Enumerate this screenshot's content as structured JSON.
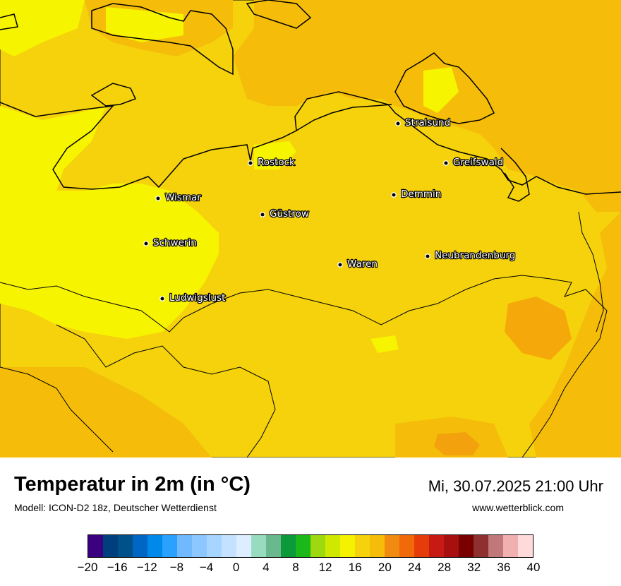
{
  "map": {
    "cities": [
      {
        "name": "Stralsund"
      },
      {
        "name": "Rostock"
      },
      {
        "name": "Greifswald"
      },
      {
        "name": "Wismar"
      },
      {
        "name": "Demmin"
      },
      {
        "name": "Güstrow"
      },
      {
        "name": "Schwerin"
      },
      {
        "name": "Neubrandenburg"
      },
      {
        "name": "Waren"
      },
      {
        "name": "Ludwigslust"
      }
    ],
    "colors": {
      "warm_zone": "#f5d20c",
      "cool_zone": "#f7f400",
      "warmer_zone": "#f5bd0a",
      "hot_zone": "#f08a10",
      "coast_line": "#000000",
      "border_line": "#000000"
    }
  },
  "header": {
    "title": "Temperatur in 2m (in °C)",
    "subtitle": "Modell: ICON-D2 18z, Deutscher Wetterdienst",
    "datetime": "Mi, 30.07.2025 21:00 Uhr",
    "website": "www.wetterblick.com"
  },
  "colorbar": {
    "colors": [
      "#3a0080",
      "#003f7d",
      "#00508a",
      "#0066c4",
      "#0088ea",
      "#2aa0ff",
      "#70b9ff",
      "#8cc8ff",
      "#a6d6ff",
      "#c4e2ff",
      "#dceeff",
      "#98dcc0",
      "#6ab88e",
      "#0a9a3a",
      "#1ab818",
      "#9ed80e",
      "#d0e800",
      "#f4f200",
      "#f5d20c",
      "#f5bd0a",
      "#f08a10",
      "#f06a0a",
      "#e63c0a",
      "#c81a14",
      "#a81010",
      "#7a0000",
      "#8e3030",
      "#c07878",
      "#f0b0b0",
      "#ffdada"
    ],
    "tick_labels": [
      "−20",
      "−16",
      "−12",
      "−8",
      "−4",
      "0",
      "4",
      "8",
      "12",
      "16",
      "20",
      "24",
      "28",
      "32",
      "36",
      "40"
    ]
  }
}
